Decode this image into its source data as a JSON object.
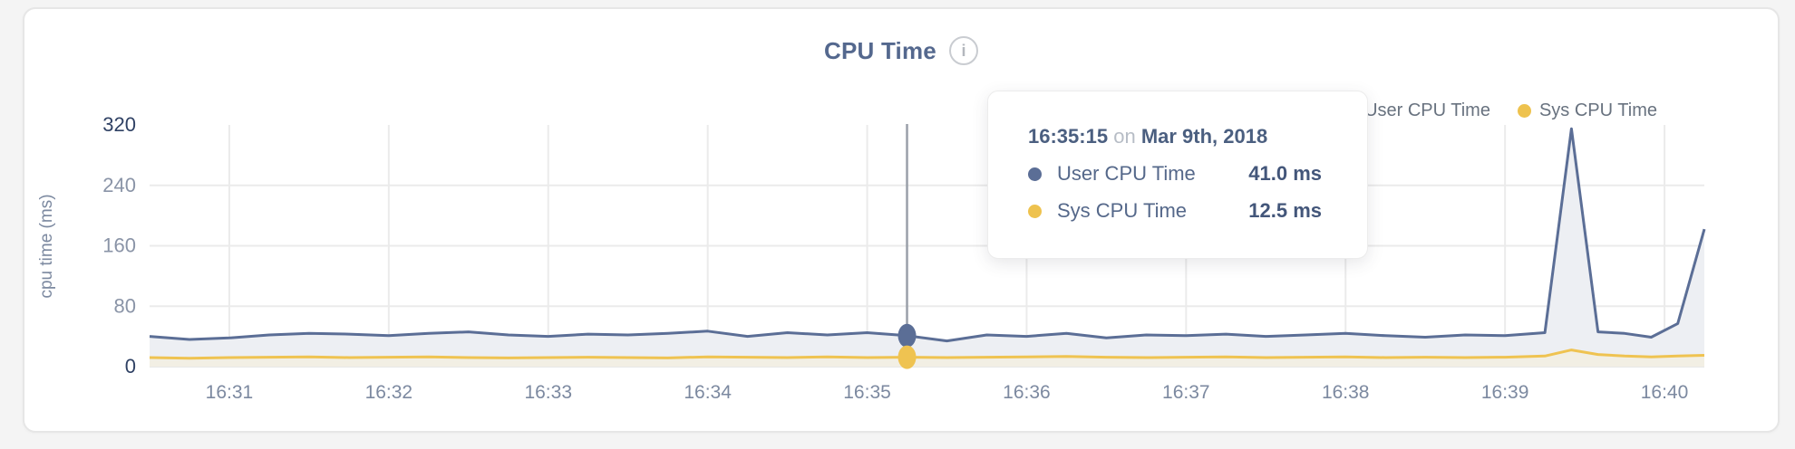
{
  "card": {
    "title": "CPU Time",
    "info_glyph": "i"
  },
  "legend": [
    {
      "label": "User CPU Time",
      "color": "#5b6e96"
    },
    {
      "label": "Sys CPU Time",
      "color": "#eec24e"
    }
  ],
  "colors": {
    "user_line": "#5b6e96",
    "user_fill": "#edeff3",
    "sys_line": "#efc351",
    "sys_fill": "#f2efe4",
    "grid": "#ebebeb",
    "baseline": "#e7e7e7",
    "tick_dark": "#2f4164",
    "tick_light": "#8a94a7",
    "axis_text": "#7c89a0",
    "hover_line": "#9aa0a9"
  },
  "tooltip": {
    "time": "16:35:15",
    "connector": "on",
    "date": "Mar 9th, 2018",
    "rows": [
      {
        "label": "User CPU Time",
        "value": "41.0 ms",
        "color": "#5b6e96"
      },
      {
        "label": "Sys CPU Time",
        "value": "12.5 ms",
        "color": "#eec24e"
      }
    ]
  },
  "hover": {
    "time": "16:35:15",
    "user": 41.0,
    "sys": 12.5
  },
  "chart_data": {
    "type": "line",
    "title": "CPU Time",
    "xlabel": "",
    "ylabel": "cpu time (ms)",
    "ylim": [
      0,
      320
    ],
    "yticks": [
      0,
      80,
      160,
      240,
      320
    ],
    "xticks": [
      "16:31",
      "16:32",
      "16:33",
      "16:34",
      "16:35",
      "16:36",
      "16:37",
      "16:38",
      "16:39",
      "16:40"
    ],
    "grid": true,
    "legend_position": "top-right",
    "x": [
      "16:30:30",
      "16:30:45",
      "16:31:00",
      "16:31:15",
      "16:31:30",
      "16:31:45",
      "16:32:00",
      "16:32:15",
      "16:32:30",
      "16:32:45",
      "16:33:00",
      "16:33:15",
      "16:33:30",
      "16:33:45",
      "16:34:00",
      "16:34:15",
      "16:34:30",
      "16:34:45",
      "16:35:00",
      "16:35:15",
      "16:35:30",
      "16:35:45",
      "16:36:00",
      "16:36:15",
      "16:36:30",
      "16:36:45",
      "16:37:00",
      "16:37:15",
      "16:37:30",
      "16:37:45",
      "16:38:00",
      "16:38:15",
      "16:38:30",
      "16:38:45",
      "16:39:00",
      "16:39:15",
      "16:39:25",
      "16:39:35",
      "16:39:45",
      "16:39:55",
      "16:40:05",
      "16:40:15"
    ],
    "series": [
      {
        "name": "User CPU Time",
        "color": "#5b6e96",
        "values": [
          40,
          36,
          38,
          42,
          44,
          43,
          41,
          44,
          46,
          42,
          40,
          43,
          42,
          44,
          47,
          40,
          45,
          42,
          45,
          41,
          34,
          42,
          40,
          44,
          38,
          42,
          41,
          43,
          40,
          42,
          44,
          41,
          39,
          42,
          41,
          45,
          315,
          46,
          44,
          39,
          57,
          182
        ]
      },
      {
        "name": "Sys CPU Time",
        "color": "#efc351",
        "values": [
          12,
          11,
          12,
          12.5,
          13,
          12,
          12.5,
          13,
          12,
          11.5,
          12,
          12.5,
          12,
          11.5,
          13,
          12.5,
          12,
          13,
          12,
          12.5,
          12,
          12.5,
          13,
          13.5,
          12.5,
          12,
          12.5,
          13,
          12,
          12.5,
          13,
          12,
          12.5,
          12,
          12.5,
          14,
          22,
          16,
          14,
          13,
          14,
          15
        ]
      }
    ]
  }
}
